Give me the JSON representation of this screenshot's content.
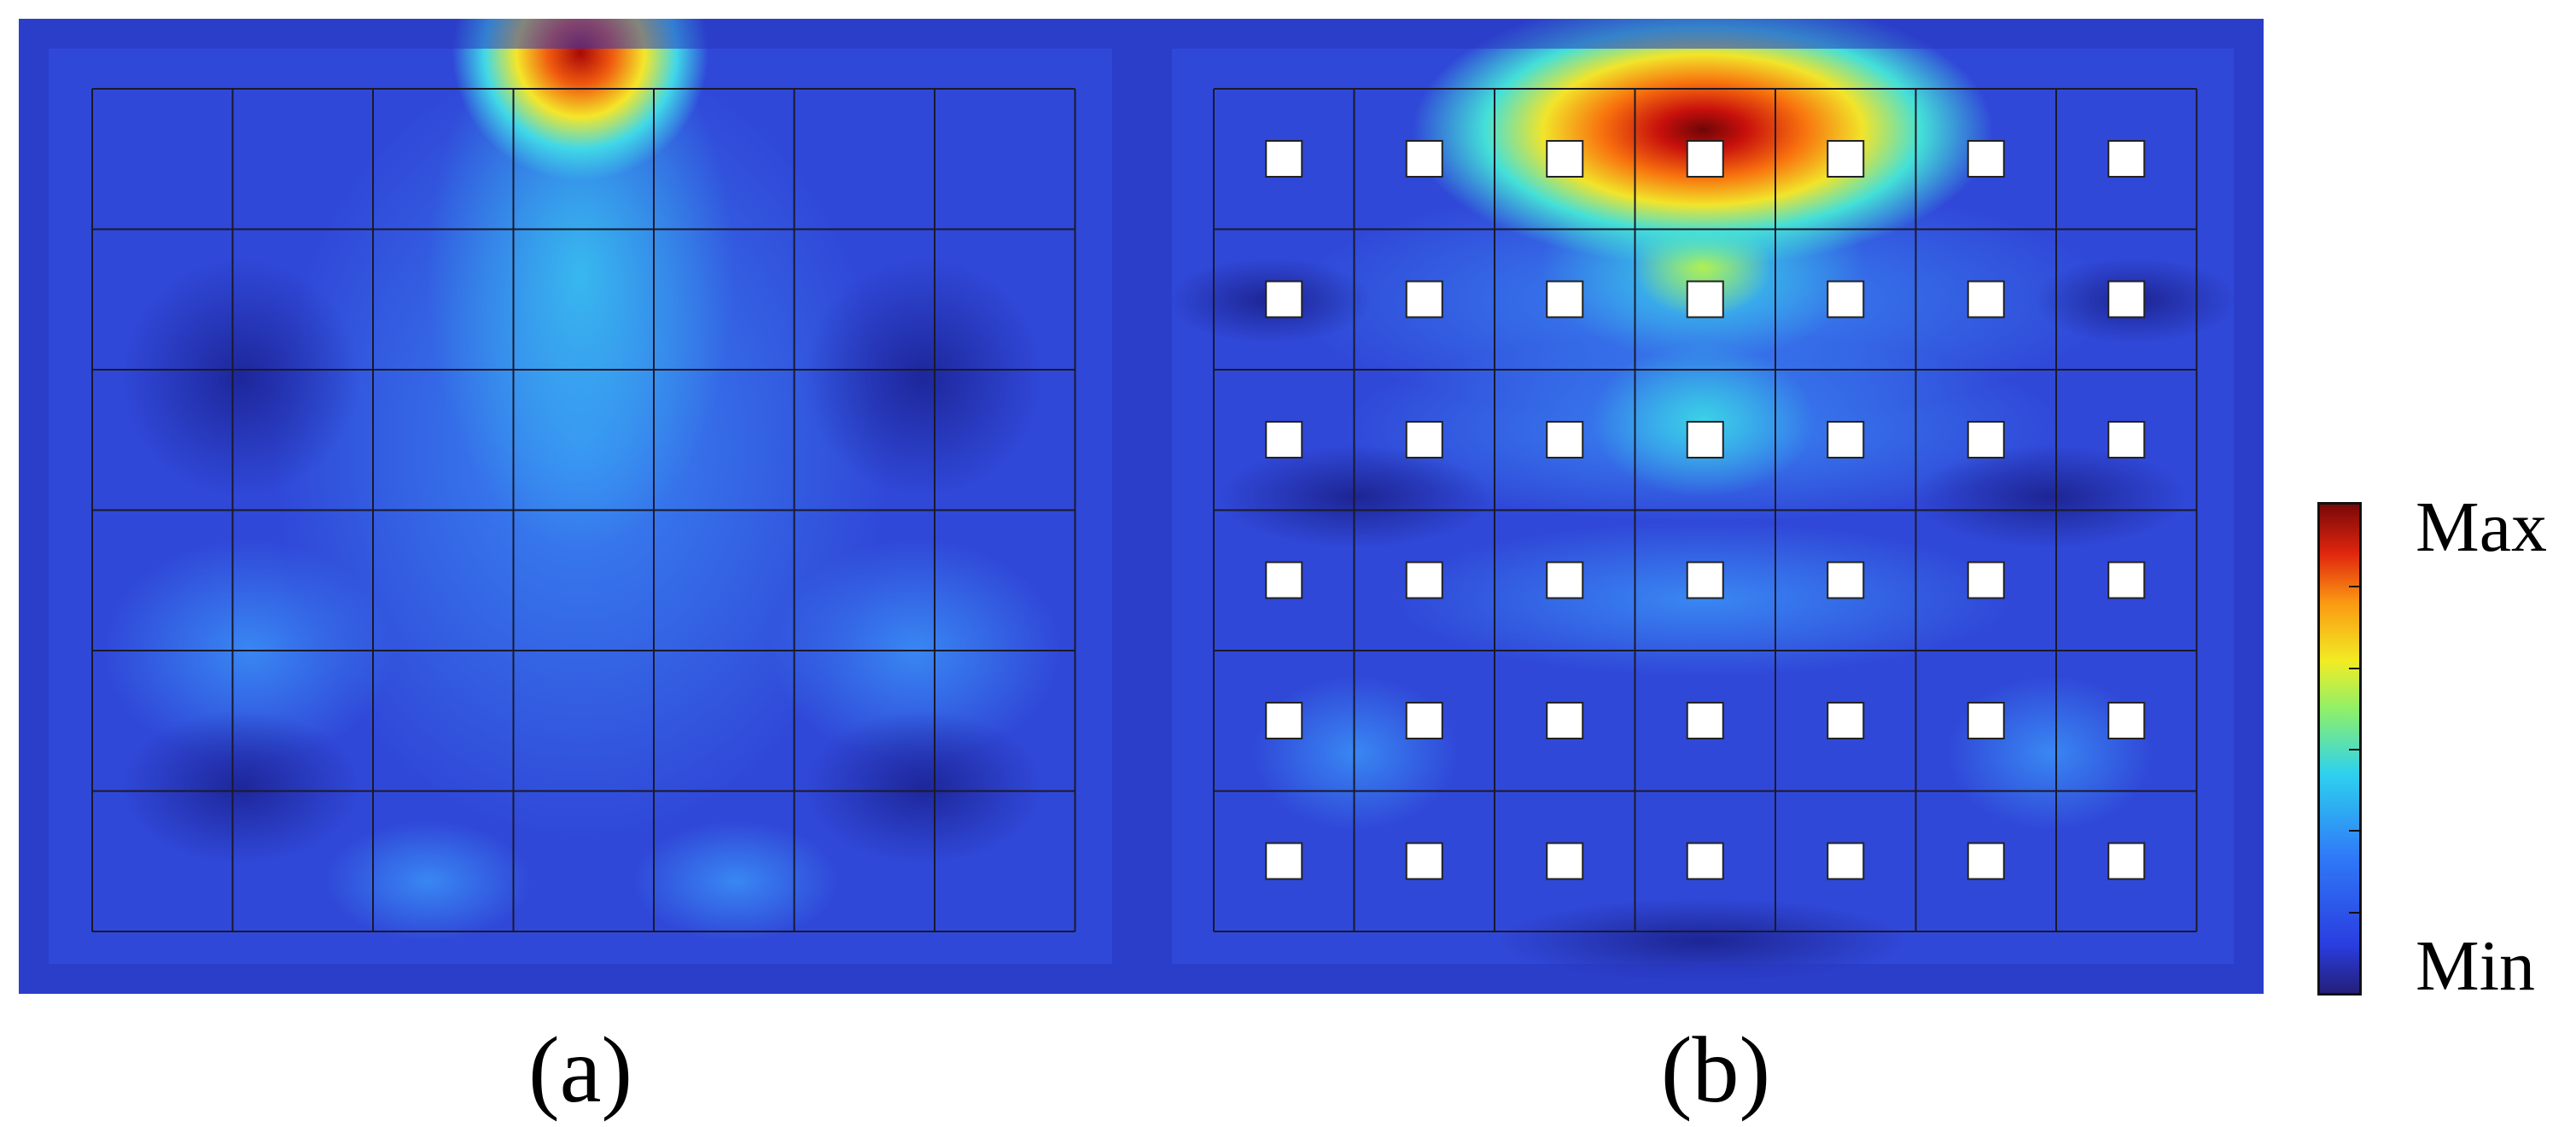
{
  "panels": [
    {
      "id": "a",
      "label": "(a)",
      "grid": {
        "columns": 7,
        "rows": 6
      },
      "square_inclusions": false
    },
    {
      "id": "b",
      "label": "(b)",
      "grid": {
        "columns": 7,
        "rows": 6
      },
      "square_inclusions": true
    }
  ],
  "colorbar": {
    "max_label": "Max",
    "min_label": "Min",
    "colors": [
      "#241f7a",
      "#2a3ee0",
      "#2f7af8",
      "#2ed2ee",
      "#8ef06a",
      "#f2ec24",
      "#fb9812",
      "#e0260e",
      "#7a0808"
    ]
  },
  "colors": {
    "field_base": "#3048d8",
    "grid_line": "#1a1a2a",
    "inclusion": "#ffffff"
  }
}
